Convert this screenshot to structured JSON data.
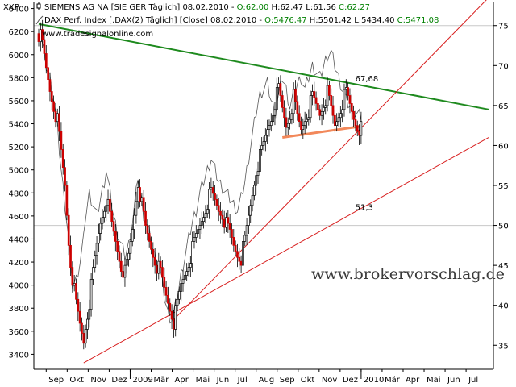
{
  "legend": {
    "row1": {
      "name": "SIEMENS AG NA [SIE GER  Täglich] 08.02.2010 - ",
      "o": "O:62,00",
      "h": " H:62,47",
      "l": " L:61,56",
      "c": " C:62,27"
    },
    "row2": {
      "name": "DAX Perf. Index [.DAX(2)  Täglich] [Close] 08.02.2010 - ",
      "o": "O:5476,47",
      "h": " H:5501,42",
      "l": " L:5434,40",
      "c": " C:5471,08"
    }
  },
  "site_label": "www.tradesignalonline.com",
  "watermark": "www.brokervorschlag.de",
  "left_axis_label": "XXP",
  "colors": {
    "up": "#000000",
    "down": "#cc0000",
    "dax": "#555555",
    "resistance": "#1e8a1e",
    "support": "#d81e1e",
    "neckline": "#f2885a",
    "grid": "#c8c8c8",
    "bar_green": "#00a000"
  },
  "chart_data": {
    "type": "line",
    "x_tick_labels": [
      "Sep",
      "Okt",
      "Nov",
      "Dez",
      "2009",
      "Mär",
      "Apr",
      "Mai",
      "Jun",
      "Jul",
      "Aug",
      "Sep",
      "Okt",
      "Nov",
      "Dez",
      "2010",
      "Mär",
      "Apr",
      "Mai",
      "Jun",
      "Jul"
    ],
    "left_axis": {
      "ticks": [
        3400,
        3600,
        3800,
        4000,
        4200,
        4400,
        4600,
        4800,
        5000,
        5200,
        5400,
        5600,
        5800,
        6000,
        6200,
        6400
      ],
      "range": [
        3270,
        6460
      ]
    },
    "right_axis": {
      "ticks": [
        35,
        40,
        45,
        50,
        55,
        60,
        65,
        70,
        75
      ],
      "range": [
        32,
        78
      ]
    },
    "series": [
      {
        "name": "SIEMENS AG NA",
        "axis": "right",
        "style": "candlestick",
        "points": [
          [
            0,
            74.0
          ],
          [
            1,
            73.5
          ],
          [
            2,
            72.5
          ],
          [
            4,
            69.5
          ],
          [
            6,
            67.0
          ],
          [
            8,
            65.0
          ],
          [
            10,
            63.0
          ],
          [
            12,
            59.0
          ],
          [
            14,
            55.0
          ],
          [
            16,
            48.0
          ],
          [
            17,
            45.5
          ],
          [
            18,
            43.5
          ],
          [
            20,
            40.0
          ],
          [
            22,
            37.5
          ],
          [
            24,
            35.5
          ],
          [
            25,
            37.5
          ],
          [
            27,
            40.5
          ],
          [
            29,
            44.0
          ],
          [
            31,
            47.5
          ],
          [
            33,
            50.5
          ],
          [
            35,
            52.5
          ],
          [
            36,
            53.5
          ],
          [
            38,
            51.0
          ],
          [
            40,
            49.0
          ],
          [
            42,
            47.0
          ],
          [
            44,
            45.0
          ],
          [
            46,
            44.0
          ],
          [
            48,
            46.0
          ],
          [
            50,
            49.5
          ],
          [
            52,
            53.5
          ],
          [
            53,
            55.5
          ],
          [
            55,
            52.5
          ],
          [
            57,
            49.5
          ],
          [
            59,
            48.0
          ],
          [
            61,
            46.5
          ],
          [
            63,
            45.0
          ],
          [
            65,
            44.0
          ],
          [
            67,
            42.0
          ],
          [
            69,
            40.5
          ],
          [
            71,
            39.0
          ],
          [
            72,
            38.0
          ],
          [
            74,
            40.0
          ],
          [
            76,
            42.5
          ],
          [
            78,
            44.0
          ],
          [
            80,
            45.5
          ],
          [
            82,
            47.0
          ],
          [
            84,
            48.5
          ],
          [
            86,
            50.0
          ],
          [
            88,
            51.5
          ],
          [
            90,
            53.0
          ],
          [
            92,
            54.0
          ],
          [
            94,
            53.0
          ],
          [
            96,
            52.0
          ],
          [
            98,
            51.5
          ],
          [
            100,
            50.0
          ],
          [
            102,
            49.0
          ],
          [
            104,
            47.5
          ],
          [
            106,
            46.5
          ],
          [
            108,
            46.0
          ],
          [
            110,
            48.0
          ],
          [
            112,
            51.0
          ],
          [
            114,
            54.0
          ],
          [
            116,
            57.0
          ],
          [
            118,
            58.5
          ],
          [
            120,
            60.0
          ],
          [
            122,
            62.0
          ],
          [
            124,
            63.5
          ],
          [
            126,
            65.5
          ],
          [
            128,
            67.0
          ],
          [
            130,
            64.5
          ],
          [
            132,
            62.5
          ],
          [
            134,
            64.0
          ],
          [
            136,
            66.0
          ],
          [
            138,
            63.5
          ],
          [
            140,
            62.0
          ],
          [
            142,
            63.5
          ],
          [
            144,
            64.5
          ],
          [
            146,
            66.0
          ],
          [
            148,
            65.0
          ],
          [
            150,
            64.0
          ],
          [
            152,
            65.5
          ],
          [
            154,
            66.5
          ],
          [
            156,
            64.5
          ],
          [
            158,
            62.5
          ],
          [
            160,
            64.0
          ],
          [
            162,
            65.5
          ],
          [
            164,
            66.5
          ],
          [
            166,
            65.0
          ],
          [
            168,
            63.5
          ],
          [
            170,
            62.5
          ],
          [
            172,
            62.0
          ]
        ]
      },
      {
        "name": "DAX Perf. Index",
        "axis": "left",
        "style": "line",
        "points": [
          [
            0,
            6230
          ],
          [
            1,
            6180
          ],
          [
            2,
            6080
          ],
          [
            4,
            5900
          ],
          [
            6,
            5800
          ],
          [
            8,
            5600
          ],
          [
            10,
            5350
          ],
          [
            12,
            5000
          ],
          [
            14,
            4700
          ],
          [
            16,
            4400
          ],
          [
            17,
            4150
          ],
          [
            18,
            4000
          ],
          [
            20,
            4050
          ],
          [
            22,
            4200
          ],
          [
            24,
            4400
          ],
          [
            25,
            4600
          ],
          [
            27,
            4800
          ],
          [
            29,
            4700
          ],
          [
            31,
            4600
          ],
          [
            33,
            4750
          ],
          [
            35,
            4900
          ],
          [
            36,
            5000
          ],
          [
            38,
            4800
          ],
          [
            40,
            4600
          ],
          [
            42,
            4450
          ],
          [
            44,
            4350
          ],
          [
            46,
            4250
          ],
          [
            48,
            4350
          ],
          [
            50,
            4550
          ],
          [
            52,
            4800
          ],
          [
            53,
            4950
          ],
          [
            55,
            4700
          ],
          [
            57,
            4550
          ],
          [
            59,
            4450
          ],
          [
            61,
            4300
          ],
          [
            63,
            4200
          ],
          [
            65,
            4100
          ],
          [
            67,
            3900
          ],
          [
            69,
            3750
          ],
          [
            71,
            3700
          ],
          [
            72,
            3750
          ],
          [
            74,
            3900
          ],
          [
            76,
            4100
          ],
          [
            78,
            4250
          ],
          [
            80,
            4400
          ],
          [
            82,
            4550
          ],
          [
            84,
            4650
          ],
          [
            86,
            4800
          ],
          [
            88,
            4900
          ],
          [
            90,
            5000
          ],
          [
            92,
            5100
          ],
          [
            94,
            5000
          ],
          [
            96,
            4900
          ],
          [
            98,
            4850
          ],
          [
            100,
            4800
          ],
          [
            102,
            4750
          ],
          [
            104,
            4700
          ],
          [
            106,
            4650
          ],
          [
            108,
            4750
          ],
          [
            110,
            4900
          ],
          [
            112,
            5100
          ],
          [
            114,
            5300
          ],
          [
            116,
            5500
          ],
          [
            118,
            5650
          ],
          [
            120,
            5700
          ],
          [
            122,
            5750
          ],
          [
            124,
            5600
          ],
          [
            126,
            5500
          ],
          [
            128,
            5650
          ],
          [
            130,
            5800
          ],
          [
            132,
            5700
          ],
          [
            134,
            5550
          ],
          [
            136,
            5650
          ],
          [
            138,
            5750
          ],
          [
            140,
            5800
          ],
          [
            142,
            5700
          ],
          [
            144,
            5800
          ],
          [
            146,
            5900
          ],
          [
            148,
            5850
          ],
          [
            150,
            5800
          ],
          [
            152,
            5900
          ],
          [
            154,
            6000
          ],
          [
            156,
            6020
          ],
          [
            158,
            5900
          ],
          [
            160,
            5800
          ],
          [
            162,
            5700
          ],
          [
            164,
            5600
          ],
          [
            166,
            5550
          ],
          [
            168,
            5500
          ],
          [
            170,
            5480
          ],
          [
            172,
            5460
          ]
        ]
      }
    ],
    "trendlines": [
      {
        "kind": "resistance",
        "axis": "right",
        "from": [
          0,
          75.2
        ],
        "to": [
          240,
          64.5
        ],
        "label": "67,68",
        "label_at": 168
      },
      {
        "kind": "support",
        "axis": "right",
        "from": [
          24,
          32.8
        ],
        "to": [
          240,
          61.0
        ],
        "label": "51,3",
        "label_at": 168
      },
      {
        "kind": "support_steep",
        "axis": "right",
        "from": [
          72,
          38.2
        ],
        "to": [
          240,
          78.5
        ],
        "label": ""
      },
      {
        "kind": "neckline",
        "axis": "right",
        "from": [
          130,
          61.0
        ],
        "to": [
          172,
          62.4
        ],
        "label": ""
      }
    ]
  }
}
